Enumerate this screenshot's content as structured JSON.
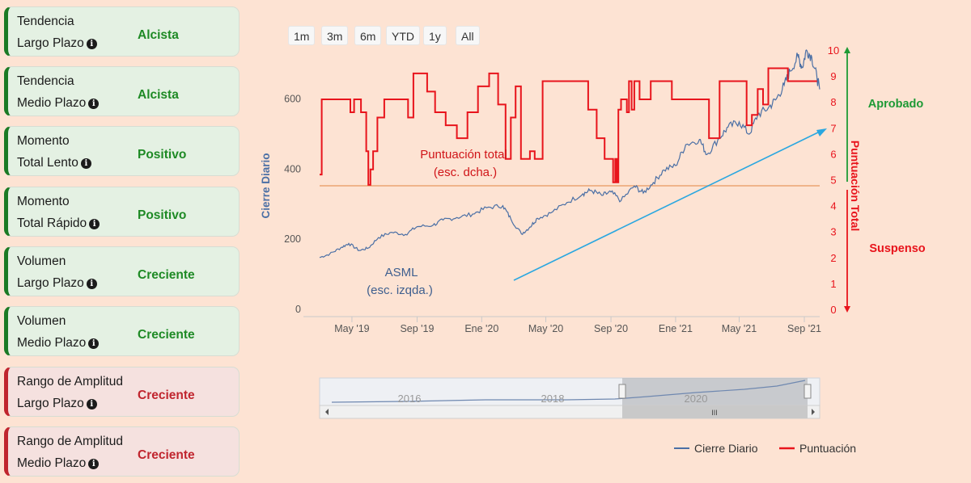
{
  "cards": [
    {
      "line1": "Tendencia",
      "line2": "Largo Plazo",
      "value": "Alcista",
      "status": "green"
    },
    {
      "line1": "Tendencia",
      "line2": "Medio Plazo",
      "value": "Alcista",
      "status": "green"
    },
    {
      "line1": "Momento",
      "line2": "Total Lento",
      "value": "Positivo",
      "status": "green"
    },
    {
      "line1": "Momento",
      "line2": "Total Rápido",
      "value": "Positivo",
      "status": "green"
    },
    {
      "line1": "Volumen",
      "line2": "Largo Plazo",
      "value": "Creciente",
      "status": "green"
    },
    {
      "line1": "Volumen",
      "line2": "Medio Plazo",
      "value": "Creciente",
      "status": "green"
    },
    {
      "line1": "Rango de Amplitud",
      "line2": "Largo Plazo",
      "value": "Creciente",
      "status": "red"
    },
    {
      "line1": "Rango de Amplitud",
      "line2": "Medio Plazo",
      "value": "Creciente",
      "status": "red"
    }
  ],
  "range_buttons": [
    "1m",
    "3m",
    "6m",
    "YTD",
    "1y",
    "All"
  ],
  "colors": {
    "price": "#4a6fa5",
    "score": "#e8141c",
    "approved": "#1e9a35",
    "failed": "#e8141c",
    "threshold": "#f0b48a",
    "trend": "#2aa7e0"
  },
  "chart_data": {
    "type": "line",
    "title": "",
    "x_ticks": [
      "May '19",
      "Sep '19",
      "Ene '20",
      "May '20",
      "Sep '20",
      "Ene '21",
      "May '21",
      "Sep '21"
    ],
    "y_left": {
      "label": "Cierre Diario",
      "ticks": [
        0,
        200,
        400,
        600
      ],
      "range": [
        0,
        740
      ]
    },
    "y_right": {
      "label": "Puntuación Total",
      "ticks": [
        0,
        1,
        2,
        3,
        4,
        5,
        6,
        7,
        8,
        9,
        10
      ],
      "range": [
        0,
        10
      ]
    },
    "threshold": 4.8,
    "zone_labels": {
      "approved": "Aprobado",
      "failed": "Suspenso"
    },
    "annotations": {
      "score_line1": "Puntuación total",
      "score_line2": "(esc. dcha.)",
      "price_line1": "ASML",
      "price_line2": "(esc. izqda.)"
    },
    "series": [
      {
        "name": "Cierre Diario",
        "axis": "left",
        "points": [
          [
            "2019-03-01",
            148
          ],
          [
            "2019-03-20",
            158
          ],
          [
            "2019-04-10",
            176
          ],
          [
            "2019-04-25",
            188
          ],
          [
            "2019-05-15",
            168
          ],
          [
            "2019-06-01",
            175
          ],
          [
            "2019-06-20",
            205
          ],
          [
            "2019-07-15",
            220
          ],
          [
            "2019-08-10",
            214
          ],
          [
            "2019-09-01",
            236
          ],
          [
            "2019-10-01",
            240
          ],
          [
            "2019-10-20",
            255
          ],
          [
            "2019-11-15",
            262
          ],
          [
            "2019-12-15",
            272
          ],
          [
            "2020-01-10",
            290
          ],
          [
            "2020-02-10",
            296
          ],
          [
            "2020-02-25",
            258
          ],
          [
            "2020-03-16",
            215
          ],
          [
            "2020-04-01",
            235
          ],
          [
            "2020-04-15",
            260
          ],
          [
            "2020-05-10",
            275
          ],
          [
            "2020-06-10",
            305
          ],
          [
            "2020-07-10",
            330
          ],
          [
            "2020-07-25",
            340
          ],
          [
            "2020-08-15",
            325
          ],
          [
            "2020-09-01",
            335
          ],
          [
            "2020-09-20",
            310
          ],
          [
            "2020-10-15",
            352
          ],
          [
            "2020-11-01",
            332
          ],
          [
            "2020-11-20",
            362
          ],
          [
            "2020-12-10",
            398
          ],
          [
            "2021-01-01",
            410
          ],
          [
            "2021-01-20",
            470
          ],
          [
            "2021-02-15",
            485
          ],
          [
            "2021-03-01",
            442
          ],
          [
            "2021-03-25",
            490
          ],
          [
            "2021-04-10",
            520
          ],
          [
            "2021-05-01",
            535
          ],
          [
            "2021-05-20",
            500
          ],
          [
            "2021-06-05",
            555
          ],
          [
            "2021-06-25",
            575
          ],
          [
            "2021-07-10",
            600
          ],
          [
            "2021-07-25",
            640
          ],
          [
            "2021-08-05",
            680
          ],
          [
            "2021-08-20",
            722
          ],
          [
            "2021-08-28",
            690
          ],
          [
            "2021-09-05",
            740
          ],
          [
            "2021-09-15",
            720
          ],
          [
            "2021-09-25",
            660
          ],
          [
            "2021-09-30",
            628
          ]
        ]
      },
      {
        "name": "Puntuación",
        "axis": "right",
        "points": [
          [
            "2019-03-01",
            5.2
          ],
          [
            "2019-03-05",
            8.1
          ],
          [
            "2019-04-28",
            7.6
          ],
          [
            "2019-05-05",
            8.1
          ],
          [
            "2019-05-18",
            7.6
          ],
          [
            "2019-05-28",
            6.1
          ],
          [
            "2019-06-01",
            4.8
          ],
          [
            "2019-06-05",
            5.4
          ],
          [
            "2019-06-10",
            6.1
          ],
          [
            "2019-06-18",
            7.4
          ],
          [
            "2019-07-01",
            8.1
          ],
          [
            "2019-08-15",
            7.4
          ],
          [
            "2019-08-25",
            9.1
          ],
          [
            "2019-09-20",
            8.4
          ],
          [
            "2019-10-05",
            7.6
          ],
          [
            "2019-10-25",
            7.1
          ],
          [
            "2019-11-15",
            6.6
          ],
          [
            "2019-12-05",
            7.6
          ],
          [
            "2019-12-25",
            8.6
          ],
          [
            "2020-01-15",
            9.1
          ],
          [
            "2020-02-01",
            7.9
          ],
          [
            "2020-02-15",
            5.8
          ],
          [
            "2020-02-25",
            7.4
          ],
          [
            "2020-03-05",
            8.6
          ],
          [
            "2020-03-15",
            5.8
          ],
          [
            "2020-04-01",
            6.1
          ],
          [
            "2020-04-10",
            5.8
          ],
          [
            "2020-04-25",
            8.8
          ],
          [
            "2020-07-20",
            7.7
          ],
          [
            "2020-08-05",
            6.6
          ],
          [
            "2020-08-20",
            5.8
          ],
          [
            "2020-09-05",
            4.9
          ],
          [
            "2020-09-09",
            5.8
          ],
          [
            "2020-09-12",
            4.9
          ],
          [
            "2020-09-15",
            7.7
          ],
          [
            "2020-09-20",
            8.1
          ],
          [
            "2020-10-01",
            7.6
          ],
          [
            "2020-10-05",
            8.8
          ],
          [
            "2020-10-10",
            7.7
          ],
          [
            "2020-10-15",
            8.8
          ],
          [
            "2020-10-25",
            8.1
          ],
          [
            "2020-11-15",
            8.8
          ],
          [
            "2020-12-25",
            8.1
          ],
          [
            "2021-03-05",
            6.6
          ],
          [
            "2021-03-25",
            8.8
          ],
          [
            "2021-05-15",
            7.1
          ],
          [
            "2021-05-25",
            7.5
          ],
          [
            "2021-06-05",
            8.5
          ],
          [
            "2021-06-15",
            7.9
          ],
          [
            "2021-06-25",
            9.3
          ],
          [
            "2021-08-01",
            8.8
          ],
          [
            "2021-09-25",
            8.8
          ]
        ]
      }
    ]
  },
  "navigator": {
    "labels": [
      "2016",
      "2018",
      "2020"
    ]
  },
  "legend": [
    {
      "name": "Cierre Diario"
    },
    {
      "name": "Puntuación"
    }
  ]
}
